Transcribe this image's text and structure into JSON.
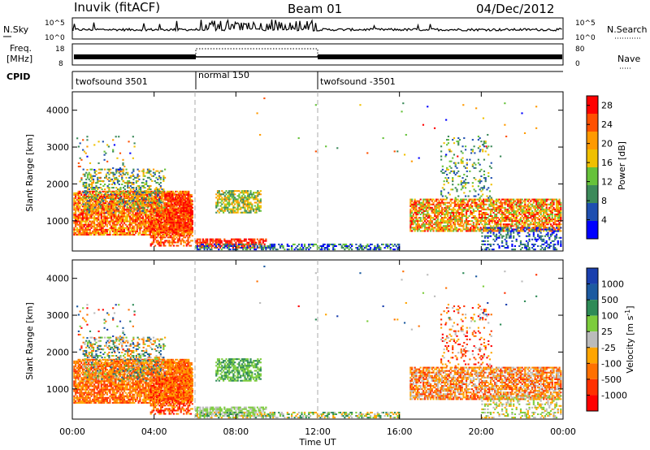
{
  "header": {
    "radar": "Inuvik (fitACF)",
    "beam": "Beam 01",
    "date": "04/Dec/2012"
  },
  "panels": {
    "nsky_label": "N.Sky",
    "nsearch_label": "N.Search",
    "nsky_ticks": [
      "10^5",
      "10^0"
    ],
    "nsearch_ticks": [
      "10^5",
      "10^0"
    ],
    "freq_label_1": "Freq.",
    "freq_label_2": "[MHz]",
    "freq_ticks": [
      "18",
      "8"
    ],
    "nave_label": "Nave",
    "nave_ticks": [
      "80",
      "0"
    ],
    "cpid_label": "CPID",
    "cpid_segments": [
      "twofsound 3501",
      "normal 150",
      "twofsound -3501"
    ]
  },
  "chart_data": [
    {
      "type": "heatmap",
      "title": "",
      "xlabel": "Time UT",
      "ylabel": "Slant Range [km]",
      "x_ticks": [
        "00:00",
        "04:00",
        "08:00",
        "12:00",
        "16:00",
        "20:00",
        "00:00"
      ],
      "y_ticks": [
        "1000",
        "2000",
        "3000",
        "4000"
      ],
      "xlim": [
        0,
        24
      ],
      "ylim": [
        180,
        4500
      ],
      "colorbar": {
        "label": "Power [dB]",
        "ticks": [
          "4",
          "8",
          "12",
          "16",
          "20",
          "24",
          "28"
        ],
        "range": [
          0,
          30
        ]
      }
    },
    {
      "type": "heatmap",
      "title": "",
      "xlabel": "Time UT",
      "ylabel": "Slant Range [km]",
      "x_ticks": [
        "00:00",
        "04:00",
        "08:00",
        "12:00",
        "16:00",
        "20:00",
        "00:00"
      ],
      "y_ticks": [
        "1000",
        "2000",
        "3000",
        "4000"
      ],
      "xlim": [
        0,
        24
      ],
      "ylim": [
        180,
        4500
      ],
      "colorbar": {
        "label": "Velocity [m s^-1]",
        "ticks": [
          "1000",
          "500",
          "100",
          "25",
          "-25",
          "-100",
          "-500",
          "-1000"
        ]
      }
    }
  ],
  "colors": {
    "power_scale": [
      "#0000ff",
      "#1f4fb0",
      "#3c8a5a",
      "#66c23a",
      "#f0c000",
      "#ff9a00",
      "#ff5000",
      "#ff0000"
    ],
    "velocity_scale": [
      "#1a3fae",
      "#1c5aa0",
      "#2e8b57",
      "#7ccc3c",
      "#bbbbbb",
      "#ffa500",
      "#ff7000",
      "#ff3000",
      "#ff0000"
    ],
    "dashed_line": "#aaaaaa"
  }
}
